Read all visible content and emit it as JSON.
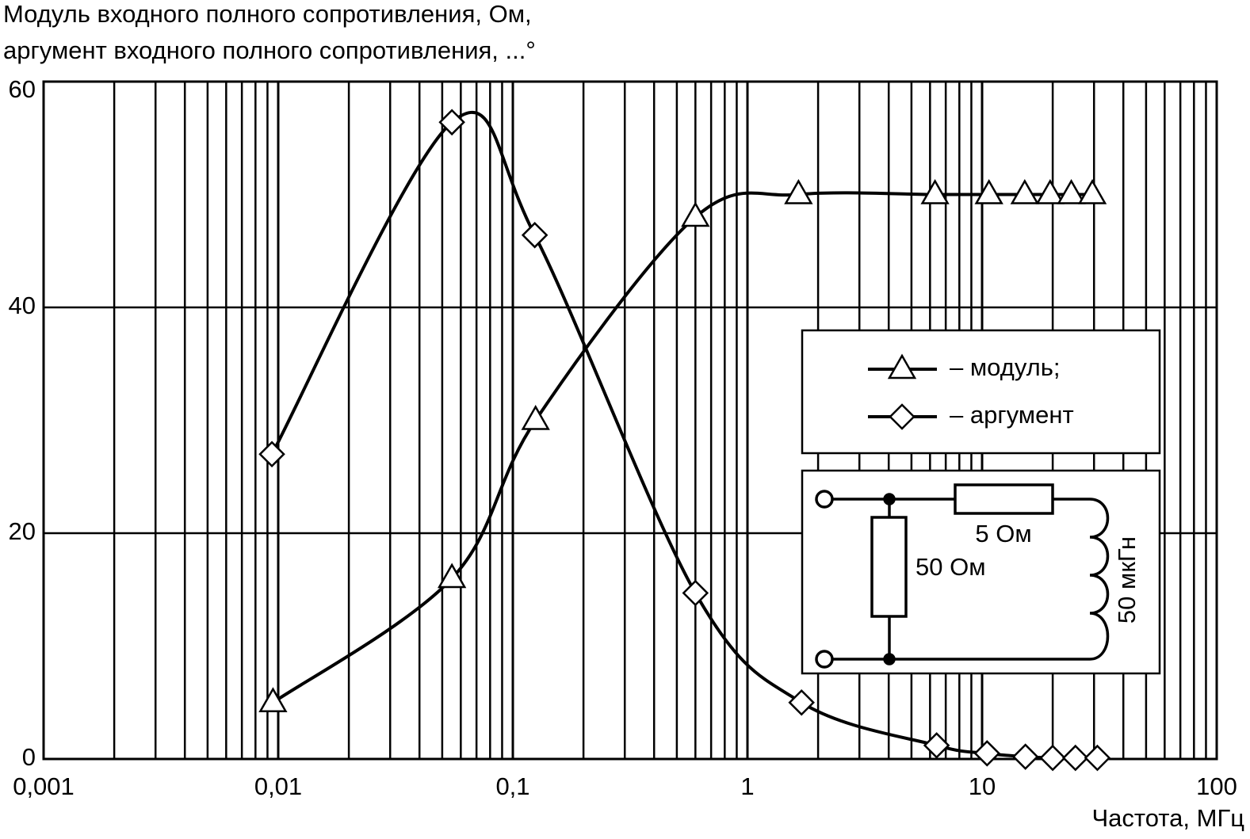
{
  "chart_data": {
    "type": "line",
    "ylabel_lines": [
      "Модуль входного полного сопротивления, Ом,",
      "аргумент входного полного сопротивления, ...°"
    ],
    "xlabel": "Частота, МГц",
    "xscale": "log",
    "xlim": [
      0.001,
      100
    ],
    "xticks": [
      {
        "value": 0.001,
        "label": "0,001"
      },
      {
        "value": 0.01,
        "label": "0,01"
      },
      {
        "value": 0.1,
        "label": "0,1"
      },
      1,
      10,
      100
    ],
    "ylim": [
      0,
      60
    ],
    "yticks": [
      0,
      20,
      40,
      60
    ],
    "grid": true,
    "minor_grid": true,
    "series": [
      {
        "name": "– модуль;",
        "color": "#000000",
        "marker": "triangle",
        "x": [
          0.0095,
          0.055,
          0.125,
          0.6,
          1.65,
          6.3,
          10.7,
          15.2,
          19.5,
          24,
          29.5
        ],
        "values": [
          5,
          16,
          30,
          48,
          50,
          50,
          50,
          50,
          50,
          50,
          50
        ]
      },
      {
        "name": "– аргумент",
        "color": "#000000",
        "marker": "diamond",
        "x": [
          0.0094,
          0.055,
          0.124,
          0.6,
          1.7,
          6.4,
          10.5,
          15.3,
          20,
          25,
          31
        ],
        "values": [
          27,
          56.4,
          46.4,
          14.7,
          5,
          1.2,
          0.5,
          0.2,
          0.1,
          0.1,
          0.1
        ]
      }
    ],
    "annotations": [
      "5 Ом",
      "50 Ом",
      "50 мкГн"
    ]
  }
}
